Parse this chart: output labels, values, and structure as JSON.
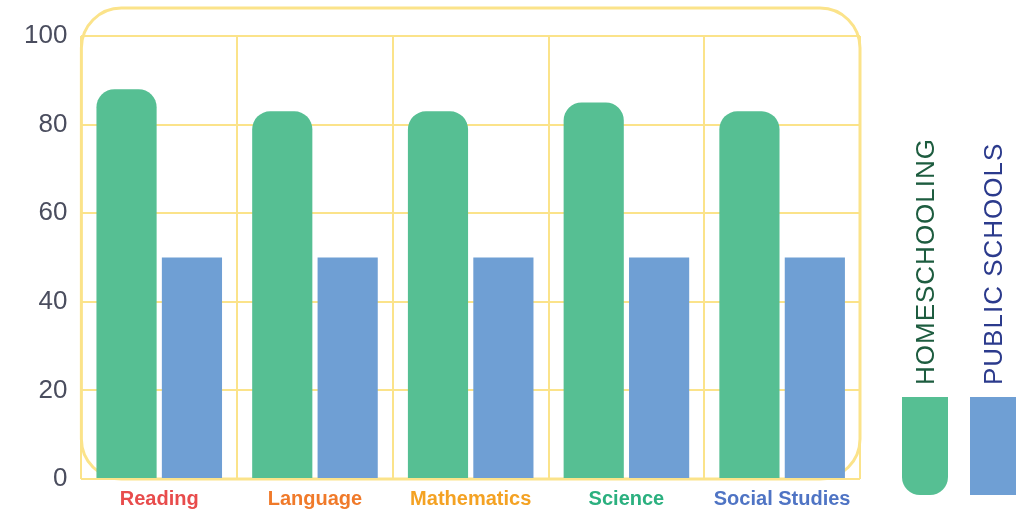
{
  "chart_data": {
    "type": "bar",
    "categories": [
      "Reading",
      "Language",
      "Mathematics",
      "Science",
      "Social Studies"
    ],
    "series": [
      {
        "name": "HOMESCHOOLING",
        "color": "#56bf93",
        "values": [
          88,
          83,
          83,
          85,
          83
        ]
      },
      {
        "name": "PUBLIC SCHOOLS",
        "color": "#6f9fd4",
        "values": [
          50,
          50,
          50,
          50,
          50
        ]
      }
    ],
    "ylim": [
      0,
      100
    ],
    "yticks": [
      0,
      20,
      40,
      60,
      80,
      100
    ],
    "grid": true,
    "legend": "right"
  }
}
